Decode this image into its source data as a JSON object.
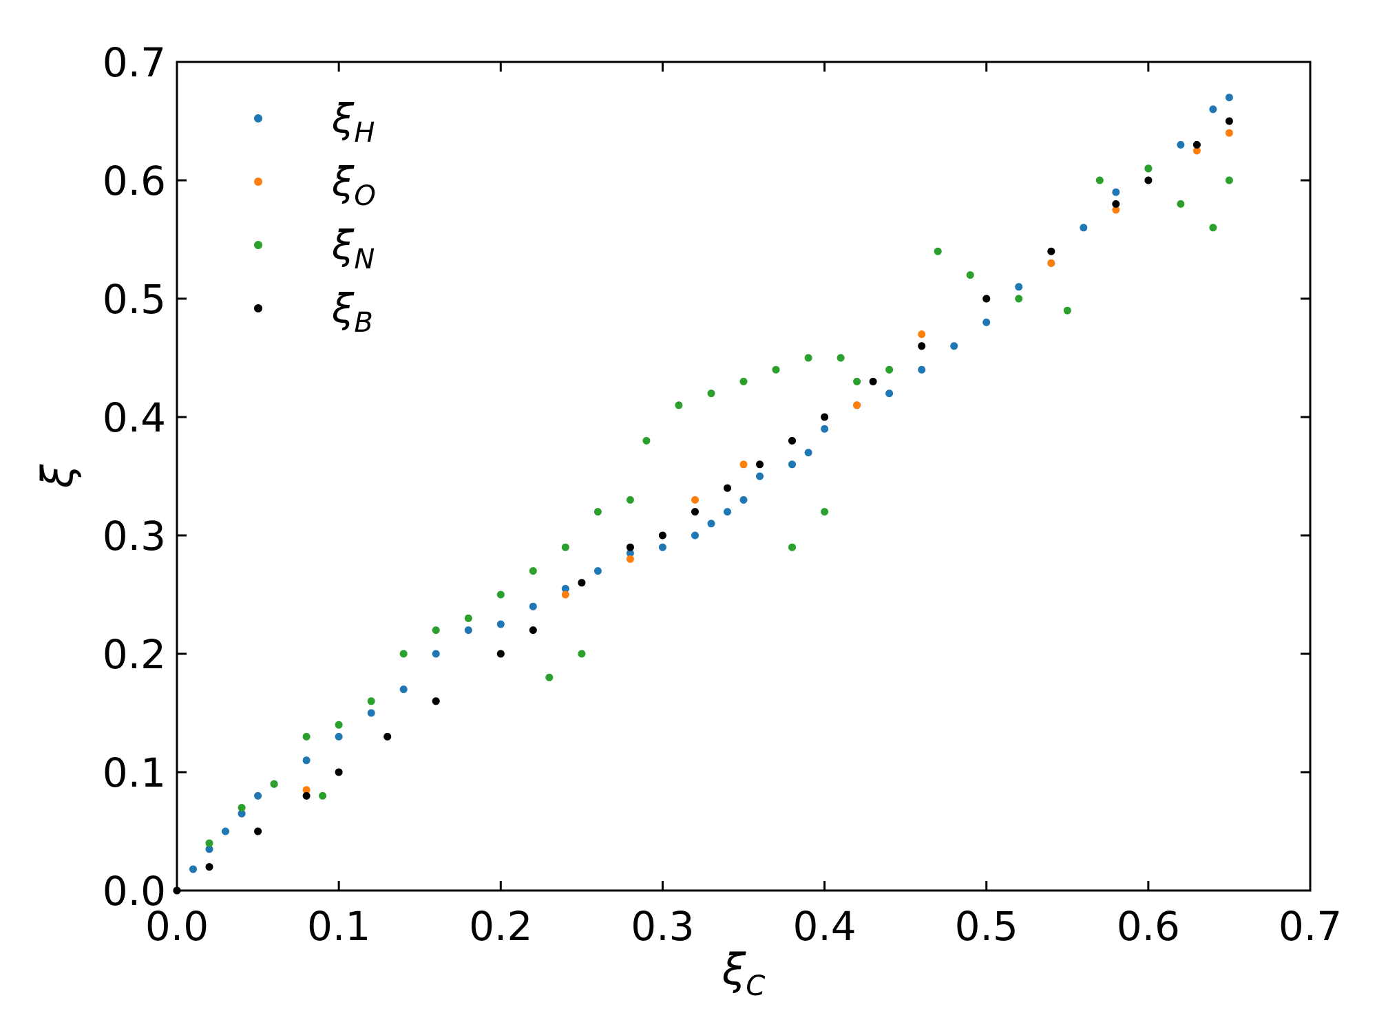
{
  "chart_data": {
    "type": "scatter",
    "title": "",
    "xlabel": {
      "main": "ξ",
      "sub": "C"
    },
    "ylabel": "ξ",
    "xlim": [
      0.0,
      0.7
    ],
    "ylim": [
      0.0,
      0.7
    ],
    "x_ticks": [
      "0.0",
      "0.1",
      "0.2",
      "0.3",
      "0.4",
      "0.5",
      "0.6",
      "0.7"
    ],
    "y_ticks": [
      "0.0",
      "0.1",
      "0.2",
      "0.3",
      "0.4",
      "0.5",
      "0.6",
      "0.7"
    ],
    "grid": false,
    "legend_position": "top-left",
    "series": [
      {
        "name": "ξH",
        "main": "ξ",
        "sub": "H",
        "color": "#1f77b4",
        "points": [
          [
            0.0,
            0.0
          ],
          [
            0.01,
            0.018
          ],
          [
            0.02,
            0.035
          ],
          [
            0.03,
            0.05
          ],
          [
            0.04,
            0.065
          ],
          [
            0.05,
            0.08
          ],
          [
            0.06,
            0.09
          ],
          [
            0.08,
            0.11
          ],
          [
            0.1,
            0.13
          ],
          [
            0.12,
            0.15
          ],
          [
            0.14,
            0.17
          ],
          [
            0.16,
            0.2
          ],
          [
            0.18,
            0.22
          ],
          [
            0.2,
            0.225
          ],
          [
            0.22,
            0.24
          ],
          [
            0.24,
            0.255
          ],
          [
            0.26,
            0.27
          ],
          [
            0.28,
            0.285
          ],
          [
            0.3,
            0.29
          ],
          [
            0.32,
            0.3
          ],
          [
            0.33,
            0.31
          ],
          [
            0.34,
            0.32
          ],
          [
            0.35,
            0.33
          ],
          [
            0.36,
            0.35
          ],
          [
            0.38,
            0.36
          ],
          [
            0.39,
            0.37
          ],
          [
            0.4,
            0.39
          ],
          [
            0.42,
            0.41
          ],
          [
            0.44,
            0.42
          ],
          [
            0.46,
            0.44
          ],
          [
            0.48,
            0.46
          ],
          [
            0.5,
            0.48
          ],
          [
            0.52,
            0.51
          ],
          [
            0.54,
            0.53
          ],
          [
            0.56,
            0.56
          ],
          [
            0.58,
            0.59
          ],
          [
            0.6,
            0.61
          ],
          [
            0.62,
            0.63
          ],
          [
            0.64,
            0.66
          ],
          [
            0.65,
            0.67
          ]
        ]
      },
      {
        "name": "ξO",
        "main": "ξ",
        "sub": "O",
        "color": "#ff7f0e",
        "points": [
          [
            0.0,
            0.0
          ],
          [
            0.02,
            0.02
          ],
          [
            0.05,
            0.05
          ],
          [
            0.08,
            0.085
          ],
          [
            0.1,
            0.1
          ],
          [
            0.13,
            0.13
          ],
          [
            0.16,
            0.16
          ],
          [
            0.2,
            0.2
          ],
          [
            0.24,
            0.25
          ],
          [
            0.28,
            0.28
          ],
          [
            0.32,
            0.33
          ],
          [
            0.35,
            0.36
          ],
          [
            0.38,
            0.38
          ],
          [
            0.42,
            0.41
          ],
          [
            0.46,
            0.47
          ],
          [
            0.5,
            0.5
          ],
          [
            0.54,
            0.53
          ],
          [
            0.58,
            0.575
          ],
          [
            0.6,
            0.6
          ],
          [
            0.63,
            0.625
          ],
          [
            0.65,
            0.64
          ]
        ]
      },
      {
        "name": "ξN",
        "main": "ξ",
        "sub": "N",
        "color": "#2ca02c",
        "points": [
          [
            0.0,
            0.0
          ],
          [
            0.02,
            0.04
          ],
          [
            0.04,
            0.07
          ],
          [
            0.06,
            0.09
          ],
          [
            0.08,
            0.13
          ],
          [
            0.1,
            0.14
          ],
          [
            0.12,
            0.16
          ],
          [
            0.14,
            0.2
          ],
          [
            0.16,
            0.22
          ],
          [
            0.18,
            0.23
          ],
          [
            0.2,
            0.25
          ],
          [
            0.22,
            0.27
          ],
          [
            0.24,
            0.29
          ],
          [
            0.26,
            0.32
          ],
          [
            0.28,
            0.33
          ],
          [
            0.29,
            0.38
          ],
          [
            0.31,
            0.41
          ],
          [
            0.33,
            0.42
          ],
          [
            0.35,
            0.43
          ],
          [
            0.37,
            0.44
          ],
          [
            0.39,
            0.45
          ],
          [
            0.41,
            0.45
          ],
          [
            0.42,
            0.43
          ],
          [
            0.38,
            0.29
          ],
          [
            0.4,
            0.32
          ],
          [
            0.44,
            0.44
          ],
          [
            0.47,
            0.54
          ],
          [
            0.49,
            0.52
          ],
          [
            0.52,
            0.5
          ],
          [
            0.55,
            0.49
          ],
          [
            0.57,
            0.6
          ],
          [
            0.6,
            0.61
          ],
          [
            0.62,
            0.58
          ],
          [
            0.64,
            0.56
          ],
          [
            0.65,
            0.6
          ],
          [
            0.09,
            0.08
          ],
          [
            0.25,
            0.2
          ],
          [
            0.23,
            0.18
          ]
        ]
      },
      {
        "name": "ξB",
        "main": "ξ",
        "sub": "B",
        "color": "#000000",
        "points": [
          [
            0.0,
            0.0
          ],
          [
            0.02,
            0.02
          ],
          [
            0.05,
            0.05
          ],
          [
            0.08,
            0.08
          ],
          [
            0.1,
            0.1
          ],
          [
            0.13,
            0.13
          ],
          [
            0.16,
            0.16
          ],
          [
            0.2,
            0.2
          ],
          [
            0.22,
            0.22
          ],
          [
            0.25,
            0.26
          ],
          [
            0.28,
            0.29
          ],
          [
            0.3,
            0.3
          ],
          [
            0.32,
            0.32
          ],
          [
            0.34,
            0.34
          ],
          [
            0.36,
            0.36
          ],
          [
            0.38,
            0.38
          ],
          [
            0.4,
            0.4
          ],
          [
            0.43,
            0.43
          ],
          [
            0.46,
            0.46
          ],
          [
            0.5,
            0.5
          ],
          [
            0.54,
            0.54
          ],
          [
            0.58,
            0.58
          ],
          [
            0.6,
            0.6
          ],
          [
            0.63,
            0.63
          ],
          [
            0.65,
            0.65
          ]
        ]
      }
    ]
  }
}
